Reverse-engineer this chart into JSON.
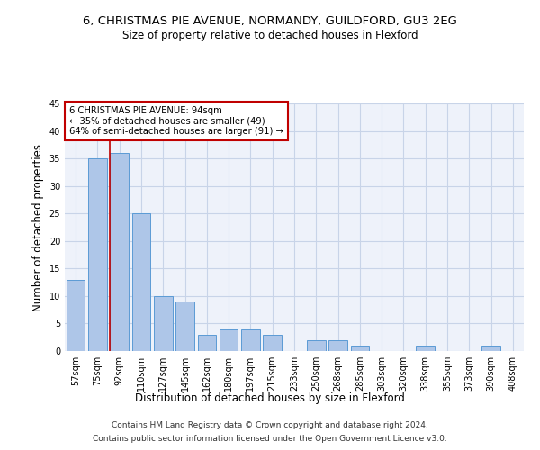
{
  "title1": "6, CHRISTMAS PIE AVENUE, NORMANDY, GUILDFORD, GU3 2EG",
  "title2": "Size of property relative to detached houses in Flexford",
  "xlabel": "Distribution of detached houses by size in Flexford",
  "ylabel": "Number of detached properties",
  "categories": [
    "57sqm",
    "75sqm",
    "92sqm",
    "110sqm",
    "127sqm",
    "145sqm",
    "162sqm",
    "180sqm",
    "197sqm",
    "215sqm",
    "233sqm",
    "250sqm",
    "268sqm",
    "285sqm",
    "303sqm",
    "320sqm",
    "338sqm",
    "355sqm",
    "373sqm",
    "390sqm",
    "408sqm"
  ],
  "values": [
    13,
    35,
    36,
    25,
    10,
    9,
    3,
    4,
    4,
    3,
    0,
    2,
    2,
    1,
    0,
    0,
    1,
    0,
    0,
    1,
    0
  ],
  "bar_color": "#aec6e8",
  "bar_edge_color": "#5b9bd5",
  "highlight_bar_index": 2,
  "highlight_color": "#c00000",
  "ylim": [
    0,
    45
  ],
  "yticks": [
    0,
    5,
    10,
    15,
    20,
    25,
    30,
    35,
    40,
    45
  ],
  "annotation_text": "6 CHRISTMAS PIE AVENUE: 94sqm\n← 35% of detached houses are smaller (49)\n64% of semi-detached houses are larger (91) →",
  "annotation_box_color": "#ffffff",
  "annotation_box_edge": "#c00000",
  "footer_line1": "Contains HM Land Registry data © Crown copyright and database right 2024.",
  "footer_line2": "Contains public sector information licensed under the Open Government Licence v3.0.",
  "bg_color": "#eef2fa",
  "grid_color": "#c8d4e8"
}
